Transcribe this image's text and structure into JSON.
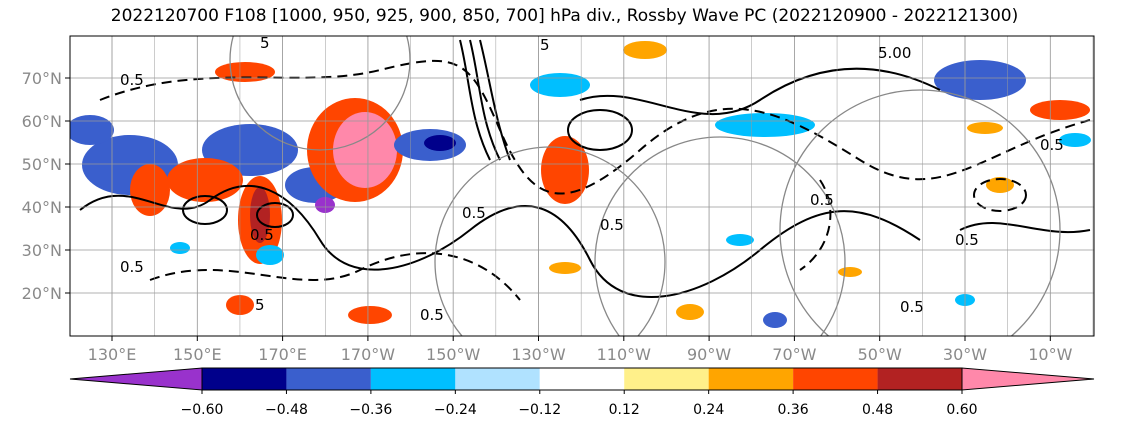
{
  "title": "2022120700 F108 [1000, 950, 925, 900, 850, 700] hPa div., Rossby Wave PC (2022120900 - 2022121300)",
  "chart_data": {
    "type": "heatmap",
    "title": "2022120700 F108 [1000, 950, 925, 900, 850, 700] hPa div., Rossby Wave PC (2022120900 - 2022121300)",
    "lat_ticks": [
      "70°N",
      "60°N",
      "50°N",
      "40°N",
      "30°N",
      "20°N"
    ],
    "lon_ticks": [
      "130°E",
      "150°E",
      "170°E",
      "170°W",
      "150°W",
      "130°W",
      "110°W",
      "90°W",
      "70°W",
      "50°W",
      "30°W",
      "10°W"
    ],
    "colorbar": {
      "levels": [
        "−0.60",
        "−0.48",
        "−0.36",
        "−0.24",
        "−0.12",
        "0.12",
        "0.24",
        "0.36",
        "0.48",
        "0.60"
      ],
      "colors": [
        "#9932cc",
        "#00008b",
        "#3a5fcd",
        "#00bfff",
        "#b0e2ff",
        "#ffffff",
        "#fff08a",
        "#ffa500",
        "#ff4500",
        "#b22222",
        "#ff88aa"
      ],
      "extend": "both"
    },
    "contour_labels": [
      "5",
      "0.5",
      "5",
      "0.5",
      "5.00",
      "5",
      "0.5",
      "0.5",
      "0.5",
      "0.5",
      "0.5",
      "0.5",
      "0.5",
      "0.5"
    ],
    "grid": true
  }
}
